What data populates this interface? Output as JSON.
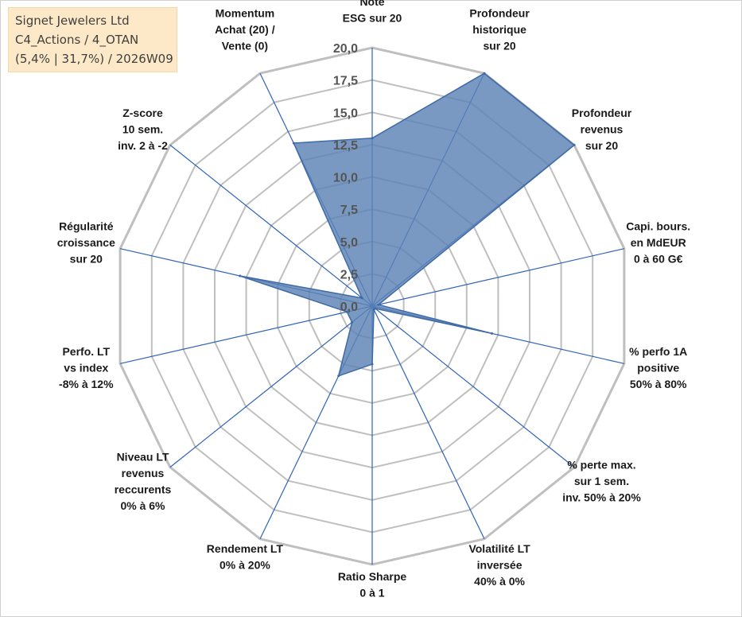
{
  "info_box": {
    "line1": "Signet Jewelers Ltd",
    "line2": "C4_Actions / 4_OTAN",
    "line3": "(5,4% | 31,7%) / 2026W09"
  },
  "colors": {
    "fill": "#5b82b5",
    "stroke": "#3f6aa8",
    "spoke": "#2e63b8",
    "grid": "#bfbfbf",
    "legend_bg": "#fde9c7"
  },
  "chart_data": {
    "type": "radar",
    "rmin": 0,
    "rmax": 20,
    "ticks": [
      "0,0",
      "2,5",
      "5,0",
      "7,5",
      "10,0",
      "12,5",
      "15,0",
      "17,5",
      "20,0"
    ],
    "axes": [
      {
        "label": [
          "Note",
          "ESG sur 20"
        ]
      },
      {
        "label": [
          "Profondeur",
          "historique",
          "sur 20"
        ]
      },
      {
        "label": [
          "Profondeur",
          "revenus",
          "sur 20"
        ]
      },
      {
        "label": [
          "Capi. bours.",
          "en MdEUR",
          "0 à 60 G€"
        ]
      },
      {
        "label": [
          "% perfo 1A",
          "positive",
          "50% à 80%"
        ]
      },
      {
        "label": [
          "% perte max.",
          "sur 1 sem.",
          "inv. 50% à 20%"
        ]
      },
      {
        "label": [
          "Volatilité LT",
          "inversée",
          "40% à 0%"
        ]
      },
      {
        "label": [
          "Ratio Sharpe",
          "0 à 1"
        ]
      },
      {
        "label": [
          "Rendement LT",
          "0% à 20%"
        ]
      },
      {
        "label": [
          "Niveau LT",
          "revenus",
          "reccurents",
          "0% à 6%"
        ]
      },
      {
        "label": [
          "Perfo. LT",
          "vs index",
          "-8% à 12%"
        ]
      },
      {
        "label": [
          "Régularité",
          "croissance",
          "sur 20"
        ]
      },
      {
        "label": [
          "Z-score",
          "10 sem.",
          "inv. 2 à -2"
        ]
      },
      {
        "label": [
          "Momentum",
          "Achat (20) /",
          "Vente (0)"
        ]
      }
    ],
    "series": [
      {
        "values": [
          13.0,
          20.0,
          20.0,
          0.5,
          9.5,
          0.3,
          0.3,
          4.5,
          6.0,
          2.0,
          2.0,
          10.5,
          1.0,
          14.0
        ]
      }
    ],
    "grid": true
  }
}
